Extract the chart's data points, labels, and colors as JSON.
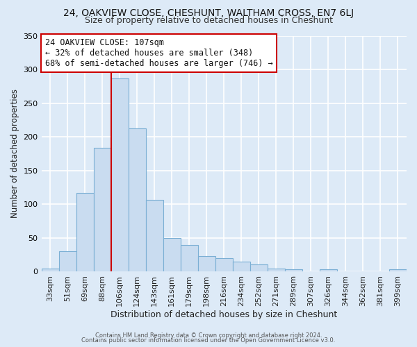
{
  "title": "24, OAKVIEW CLOSE, CHESHUNT, WALTHAM CROSS, EN7 6LJ",
  "subtitle": "Size of property relative to detached houses in Cheshunt",
  "xlabel": "Distribution of detached houses by size in Cheshunt",
  "ylabel": "Number of detached properties",
  "categories": [
    "33sqm",
    "51sqm",
    "69sqm",
    "88sqm",
    "106sqm",
    "124sqm",
    "143sqm",
    "161sqm",
    "179sqm",
    "198sqm",
    "216sqm",
    "234sqm",
    "252sqm",
    "271sqm",
    "289sqm",
    "307sqm",
    "326sqm",
    "344sqm",
    "362sqm",
    "381sqm",
    "399sqm"
  ],
  "values": [
    5,
    30,
    117,
    184,
    287,
    213,
    107,
    50,
    40,
    23,
    20,
    15,
    11,
    5,
    4,
    0,
    4,
    0,
    0,
    0,
    4
  ],
  "bar_color": "#c9dcf0",
  "bar_edge_color": "#7bafd4",
  "vline_index": 4,
  "vline_color": "#cc0000",
  "annotation_text": "24 OAKVIEW CLOSE: 107sqm\n← 32% of detached houses are smaller (348)\n68% of semi-detached houses are larger (746) →",
  "annotation_box_color": "#ffffff",
  "annotation_box_edge": "#cc0000",
  "ylim": [
    0,
    350
  ],
  "yticks": [
    0,
    50,
    100,
    150,
    200,
    250,
    300,
    350
  ],
  "footer1": "Contains HM Land Registry data © Crown copyright and database right 2024.",
  "footer2": "Contains public sector information licensed under the Open Government Licence v3.0.",
  "background_color": "#ddeaf7",
  "plot_background": "#ddeaf7",
  "grid_color": "#ffffff",
  "title_fontsize": 10,
  "subtitle_fontsize": 9,
  "xlabel_fontsize": 9,
  "ylabel_fontsize": 8.5,
  "tick_fontsize": 8,
  "annot_fontsize": 8.5,
  "footer_fontsize": 6
}
